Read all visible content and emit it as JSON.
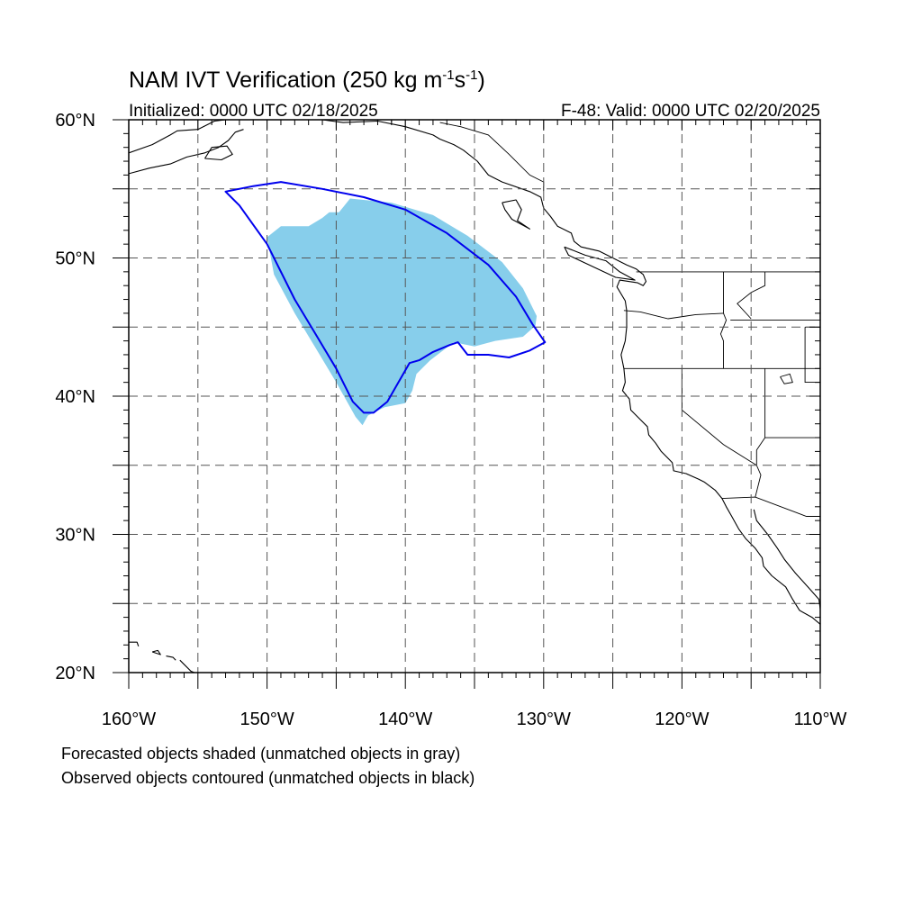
{
  "title": {
    "main": "NAM IVT Verification (250 kg m",
    "sup1": "-1",
    "mid": "s",
    "sup2": "-1",
    "close": ")"
  },
  "initialized": "Initialized: 0000 UTC 02/18/2025",
  "valid": "F-48: Valid: 0000 UTC 02/20/2025",
  "footer": {
    "line1": "Forecasted objects shaded (unmatched objects in gray)",
    "line2": "Observed objects contoured (unmatched objects in black)"
  },
  "colors": {
    "forecast_fill": "#87ceeb",
    "observed_contour": "#0000ee",
    "grid": "#555555",
    "coast": "#000000"
  },
  "map": {
    "lon_range": [
      -160,
      -110
    ],
    "lat_range": [
      20,
      60
    ],
    "grid_dashed": true,
    "lon_labels": [
      {
        "lon": -160,
        "text": "160°W"
      },
      {
        "lon": -150,
        "text": "150°W"
      },
      {
        "lon": -140,
        "text": "140°W"
      },
      {
        "lon": -130,
        "text": "130°W"
      },
      {
        "lon": -120,
        "text": "120°W"
      },
      {
        "lon": -110,
        "text": "110°W"
      }
    ],
    "lat_labels": [
      {
        "lat": 60,
        "text": "60°N"
      },
      {
        "lat": 50,
        "text": "50°N"
      },
      {
        "lat": 40,
        "text": "40°N"
      },
      {
        "lat": 30,
        "text": "30°N"
      },
      {
        "lat": 20,
        "text": "20°N"
      }
    ],
    "forecast_object": [
      [
        -144.0,
        54.3
      ],
      [
        -141.0,
        54.0
      ],
      [
        -138.0,
        53.1
      ],
      [
        -135.5,
        51.6
      ],
      [
        -133.0,
        49.7
      ],
      [
        -131.5,
        47.8
      ],
      [
        -130.5,
        45.8
      ],
      [
        -130.6,
        45.1
      ],
      [
        -131.5,
        44.3
      ],
      [
        -133.5,
        44.0
      ],
      [
        -135.0,
        43.6
      ],
      [
        -136.5,
        43.9
      ],
      [
        -138.2,
        42.6
      ],
      [
        -139.2,
        41.6
      ],
      [
        -139.5,
        40.4
      ],
      [
        -140.0,
        39.5
      ],
      [
        -141.5,
        39.2
      ],
      [
        -142.7,
        38.6
      ],
      [
        -143.1,
        37.9
      ],
      [
        -143.6,
        38.5
      ],
      [
        -145.0,
        41.0
      ],
      [
        -146.5,
        43.5
      ],
      [
        -148.0,
        46.0
      ],
      [
        -149.5,
        48.8
      ],
      [
        -150.0,
        51.5
      ],
      [
        -149.0,
        52.3
      ],
      [
        -147.0,
        52.3
      ],
      [
        -146.0,
        52.9
      ],
      [
        -145.5,
        53.3
      ],
      [
        -144.8,
        53.3
      ]
    ],
    "observed_object": [
      [
        -153.0,
        54.8
      ],
      [
        -151.0,
        55.2
      ],
      [
        -149.0,
        55.5
      ],
      [
        -146.0,
        55.0
      ],
      [
        -143.0,
        54.4
      ],
      [
        -140.0,
        53.5
      ],
      [
        -137.0,
        51.8
      ],
      [
        -134.0,
        49.5
      ],
      [
        -132.0,
        47.2
      ],
      [
        -130.8,
        45.2
      ],
      [
        -129.9,
        43.9
      ],
      [
        -131.0,
        43.3
      ],
      [
        -132.5,
        42.8
      ],
      [
        -134.0,
        43.0
      ],
      [
        -135.5,
        43.0
      ],
      [
        -136.2,
        43.9
      ],
      [
        -136.8,
        43.7
      ],
      [
        -138.0,
        43.2
      ],
      [
        -139.0,
        42.6
      ],
      [
        -139.7,
        42.4
      ],
      [
        -140.5,
        41.0
      ],
      [
        -141.3,
        39.6
      ],
      [
        -142.3,
        38.8
      ],
      [
        -143.0,
        38.8
      ],
      [
        -143.8,
        39.6
      ],
      [
        -145.0,
        42.0
      ],
      [
        -146.5,
        44.5
      ],
      [
        -148.0,
        47.0
      ],
      [
        -150.0,
        51.0
      ],
      [
        -152.0,
        53.8
      ]
    ],
    "coastlines": [
      [
        [
          -160,
          57.6
        ],
        [
          -158.3,
          58.2
        ],
        [
          -157.0,
          58.9
        ],
        [
          -156.5,
          59.2
        ],
        [
          -155.0,
          59.3
        ],
        [
          -153.8,
          59.9
        ],
        [
          -153.0,
          60.0
        ]
      ],
      [
        [
          -160,
          56.1
        ],
        [
          -158.5,
          56.5
        ],
        [
          -157.0,
          56.8
        ],
        [
          -155.8,
          57.3
        ],
        [
          -154.5,
          57.6
        ],
        [
          -153.5,
          58.0
        ],
        [
          -152.8,
          58.5
        ],
        [
          -152.3,
          59.1
        ],
        [
          -151.7,
          59.3
        ]
      ],
      [
        [
          -154.5,
          57.2
        ],
        [
          -153.3,
          57.1
        ],
        [
          -152.5,
          57.5
        ],
        [
          -152.9,
          58.1
        ],
        [
          -154.0,
          58.0
        ],
        [
          -154.5,
          57.2
        ]
      ],
      [
        [
          -148.0,
          60.0
        ],
        [
          -146.0,
          60.0
        ],
        [
          -144.5,
          59.8
        ],
        [
          -142.0,
          59.9
        ],
        [
          -140.0,
          59.5
        ],
        [
          -138.0,
          58.9
        ],
        [
          -137.5,
          58.6
        ],
        [
          -136.5,
          58.2
        ],
        [
          -135.8,
          57.8
        ],
        [
          -134.8,
          57.0
        ],
        [
          -134.0,
          56.0
        ],
        [
          -133.0,
          55.5
        ],
        [
          -131.0,
          54.8
        ],
        [
          -130.2,
          54.4
        ],
        [
          -130.0,
          53.6
        ],
        [
          -129.5,
          53.0
        ],
        [
          -129.0,
          52.3
        ],
        [
          -128.0,
          51.8
        ],
        [
          -127.8,
          51.2
        ],
        [
          -127.3,
          50.8
        ],
        [
          -126.0,
          50.5
        ],
        [
          -125.0,
          50.0
        ],
        [
          -124.0,
          49.5
        ],
        [
          -123.3,
          49.2
        ],
        [
          -122.8,
          48.8
        ],
        [
          -122.6,
          48.3
        ],
        [
          -122.8,
          48.0
        ],
        [
          -123.2,
          48.2
        ],
        [
          -124.5,
          48.4
        ],
        [
          -124.7,
          47.9
        ],
        [
          -124.1,
          46.9
        ],
        [
          -124.0,
          46.2
        ],
        [
          -124.0,
          45.0
        ],
        [
          -124.1,
          44.0
        ],
        [
          -124.4,
          43.0
        ],
        [
          -124.2,
          42.0
        ],
        [
          -124.1,
          41.0
        ],
        [
          -124.3,
          40.4
        ],
        [
          -123.8,
          39.8
        ],
        [
          -123.7,
          39.0
        ],
        [
          -123.0,
          38.3
        ],
        [
          -122.5,
          37.8
        ],
        [
          -122.4,
          37.2
        ],
        [
          -121.9,
          36.6
        ],
        [
          -121.5,
          36.0
        ],
        [
          -120.7,
          35.2
        ],
        [
          -120.6,
          34.6
        ],
        [
          -119.7,
          34.4
        ],
        [
          -118.8,
          34.0
        ],
        [
          -118.4,
          33.8
        ],
        [
          -117.6,
          33.2
        ],
        [
          -117.1,
          32.6
        ],
        [
          -116.8,
          32.0
        ],
        [
          -116.4,
          31.3
        ],
        [
          -115.9,
          30.4
        ],
        [
          -115.4,
          29.7
        ],
        [
          -114.7,
          29.0
        ],
        [
          -114.2,
          28.3
        ],
        [
          -114.1,
          27.7
        ],
        [
          -113.5,
          27.0
        ],
        [
          -112.5,
          26.2
        ],
        [
          -112.0,
          25.3
        ],
        [
          -111.5,
          24.5
        ],
        [
          -110.6,
          24.0
        ],
        [
          -110.0,
          23.5
        ]
      ],
      [
        [
          -133.0,
          54.0
        ],
        [
          -132.0,
          54.2
        ],
        [
          -131.6,
          53.5
        ],
        [
          -131.9,
          52.7
        ],
        [
          -131.0,
          52.1
        ],
        [
          -132.3,
          52.8
        ],
        [
          -132.8,
          53.5
        ],
        [
          -133.0,
          54.0
        ]
      ],
      [
        [
          -128.5,
          50.8
        ],
        [
          -127.0,
          50.2
        ],
        [
          -125.5,
          49.8
        ],
        [
          -124.5,
          49.0
        ],
        [
          -123.4,
          48.4
        ],
        [
          -124.8,
          48.6
        ],
        [
          -126.5,
          49.4
        ],
        [
          -128.2,
          50.2
        ],
        [
          -128.5,
          50.8
        ]
      ],
      [
        [
          -114.8,
          31.8
        ],
        [
          -114.6,
          31.0
        ],
        [
          -113.8,
          30.0
        ],
        [
          -113.1,
          29.0
        ],
        [
          -112.6,
          28.2
        ],
        [
          -111.8,
          27.2
        ],
        [
          -110.9,
          26.2
        ],
        [
          -110.1,
          25.3
        ],
        [
          -110.0,
          24.6
        ]
      ],
      [
        [
          -160,
          22.2
        ],
        [
          -159.4,
          22.2
        ],
        [
          -159.3,
          21.9
        ]
      ],
      [
        [
          -158.3,
          21.5
        ],
        [
          -157.7,
          21.3
        ],
        [
          -157.9,
          21.6
        ],
        [
          -158.3,
          21.5
        ]
      ],
      [
        [
          -157.3,
          21.2
        ],
        [
          -156.8,
          21.1
        ],
        [
          -156.6,
          20.9
        ]
      ],
      [
        [
          -156.3,
          20.9
        ],
        [
          -156.0,
          20.6
        ],
        [
          -155.5,
          20.1
        ],
        [
          -155.0,
          19.9
        ]
      ]
    ],
    "borders": [
      [
        [
          -141.0,
          60.0
        ],
        [
          -141.0,
          59.8
        ]
      ],
      [
        [
          -137.5,
          59.8
        ],
        [
          -136.0,
          59.5
        ],
        [
          -134.0,
          58.9
        ],
        [
          -132.5,
          57.5
        ],
        [
          -131.0,
          56.0
        ],
        [
          -130.0,
          55.5
        ],
        [
          -130.0,
          54.8
        ]
      ],
      [
        [
          -123.3,
          49.0
        ],
        [
          -110.0,
          49.0
        ]
      ],
      [
        [
          -117.0,
          49.0
        ],
        [
          -117.0,
          46.0
        ],
        [
          -116.8,
          45.5
        ],
        [
          -117.2,
          44.5
        ],
        [
          -117.0,
          44.0
        ],
        [
          -117.0,
          42.0
        ]
      ],
      [
        [
          -124.2,
          46.2
        ],
        [
          -123.0,
          46.1
        ],
        [
          -121.0,
          45.6
        ],
        [
          -119.0,
          45.9
        ],
        [
          -117.0,
          46.0
        ]
      ],
      [
        [
          -124.2,
          42.0
        ],
        [
          -110.0,
          42.0
        ]
      ],
      [
        [
          -120.0,
          42.0
        ],
        [
          -120.0,
          39.0
        ],
        [
          -117.0,
          36.5
        ],
        [
          -114.6,
          35.0
        ]
      ],
      [
        [
          -114.0,
          42.0
        ],
        [
          -114.0,
          37.0
        ],
        [
          -114.6,
          36.1
        ],
        [
          -114.6,
          35.0
        ],
        [
          -114.3,
          34.3
        ],
        [
          -114.7,
          32.7
        ]
      ],
      [
        [
          -117.1,
          32.6
        ],
        [
          -114.7,
          32.7
        ],
        [
          -111.0,
          31.3
        ],
        [
          -110.0,
          31.3
        ]
      ],
      [
        [
          -114.0,
          37.0
        ],
        [
          -110.0,
          37.0
        ]
      ],
      [
        [
          -111.1,
          45.0
        ],
        [
          -110.0,
          45.0
        ]
      ],
      [
        [
          -111.1,
          45.0
        ],
        [
          -111.1,
          41.0
        ],
        [
          -110.0,
          41.0
        ]
      ],
      [
        [
          -114.0,
          49.0
        ],
        [
          -114.0,
          48.0
        ],
        [
          -115.0,
          47.5
        ],
        [
          -116.0,
          46.7
        ],
        [
          -115.0,
          45.6
        ]
      ],
      [
        [
          -116.5,
          45.5
        ],
        [
          -110.0,
          45.5
        ]
      ]
    ],
    "lakes": [
      [
        [
          -112.9,
          41.4
        ],
        [
          -112.2,
          41.6
        ],
        [
          -112.0,
          41.0
        ],
        [
          -112.6,
          40.9
        ],
        [
          -112.9,
          41.4
        ]
      ]
    ]
  }
}
